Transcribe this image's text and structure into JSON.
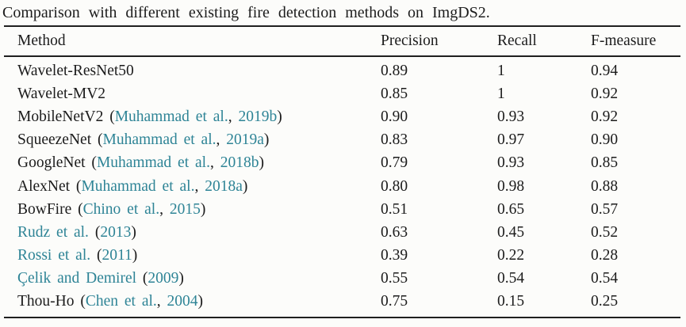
{
  "caption": "Comparison with different existing fire detection methods on ImgDS2.",
  "colors": {
    "link": "#2e8496",
    "text": "#1c1c1c",
    "rule": "#1f1f1f",
    "background": "#fcfcfa"
  },
  "table": {
    "headers": [
      "Method",
      "Precision",
      "Recall",
      "F-measure"
    ],
    "rows": [
      {
        "method": [
          {
            "text": "Wavelet-ResNet50",
            "link": false
          }
        ],
        "precision": "0.89",
        "recall": "1",
        "f_measure": "0.94"
      },
      {
        "method": [
          {
            "text": "Wavelet-MV2",
            "link": false
          }
        ],
        "precision": "0.85",
        "recall": "1",
        "f_measure": "0.92"
      },
      {
        "method": [
          {
            "text": "MobileNetV2 (",
            "link": false
          },
          {
            "text": "Muhammad et al.",
            "link": true
          },
          {
            "text": ", ",
            "link": false
          },
          {
            "text": "2019b",
            "link": true
          },
          {
            "text": ")",
            "link": false
          }
        ],
        "precision": "0.90",
        "recall": "0.93",
        "f_measure": "0.92"
      },
      {
        "method": [
          {
            "text": "SqueezeNet (",
            "link": false
          },
          {
            "text": "Muhammad et al.",
            "link": true
          },
          {
            "text": ", ",
            "link": false
          },
          {
            "text": "2019a",
            "link": true
          },
          {
            "text": ")",
            "link": false
          }
        ],
        "precision": "0.83",
        "recall": "0.97",
        "f_measure": "0.90"
      },
      {
        "method": [
          {
            "text": "GoogleNet (",
            "link": false
          },
          {
            "text": "Muhammad et al.",
            "link": true
          },
          {
            "text": ", ",
            "link": false
          },
          {
            "text": "2018b",
            "link": true
          },
          {
            "text": ")",
            "link": false
          }
        ],
        "precision": "0.79",
        "recall": "0.93",
        "f_measure": "0.85"
      },
      {
        "method": [
          {
            "text": "AlexNet (",
            "link": false
          },
          {
            "text": "Muhammad et al.",
            "link": true
          },
          {
            "text": ", ",
            "link": false
          },
          {
            "text": "2018a",
            "link": true
          },
          {
            "text": ")",
            "link": false
          }
        ],
        "precision": "0.80",
        "recall": "0.98",
        "f_measure": "0.88"
      },
      {
        "method": [
          {
            "text": "BowFire (",
            "link": false
          },
          {
            "text": "Chino et al.",
            "link": true
          },
          {
            "text": ", ",
            "link": false
          },
          {
            "text": "2015",
            "link": true
          },
          {
            "text": ")",
            "link": false
          }
        ],
        "precision": "0.51",
        "recall": "0.65",
        "f_measure": "0.57"
      },
      {
        "method": [
          {
            "text": "Rudz et al.",
            "link": true
          },
          {
            "text": " (",
            "link": false
          },
          {
            "text": "2013",
            "link": true
          },
          {
            "text": ")",
            "link": false
          }
        ],
        "precision": "0.63",
        "recall": "0.45",
        "f_measure": "0.52"
      },
      {
        "method": [
          {
            "text": "Rossi et al.",
            "link": true
          },
          {
            "text": " (",
            "link": false
          },
          {
            "text": "2011",
            "link": true
          },
          {
            "text": ")",
            "link": false
          }
        ],
        "precision": "0.39",
        "recall": "0.22",
        "f_measure": "0.28"
      },
      {
        "method": [
          {
            "text": "Çelik and Demirel",
            "link": true
          },
          {
            "text": " (",
            "link": false
          },
          {
            "text": "2009",
            "link": true
          },
          {
            "text": ")",
            "link": false
          }
        ],
        "precision": "0.55",
        "recall": "0.54",
        "f_measure": "0.54"
      },
      {
        "method": [
          {
            "text": "Thou-Ho (",
            "link": false
          },
          {
            "text": "Chen et al.",
            "link": true
          },
          {
            "text": ", ",
            "link": false
          },
          {
            "text": "2004",
            "link": true
          },
          {
            "text": ")",
            "link": false
          }
        ],
        "precision": "0.75",
        "recall": "0.15",
        "f_measure": "0.25"
      }
    ]
  }
}
